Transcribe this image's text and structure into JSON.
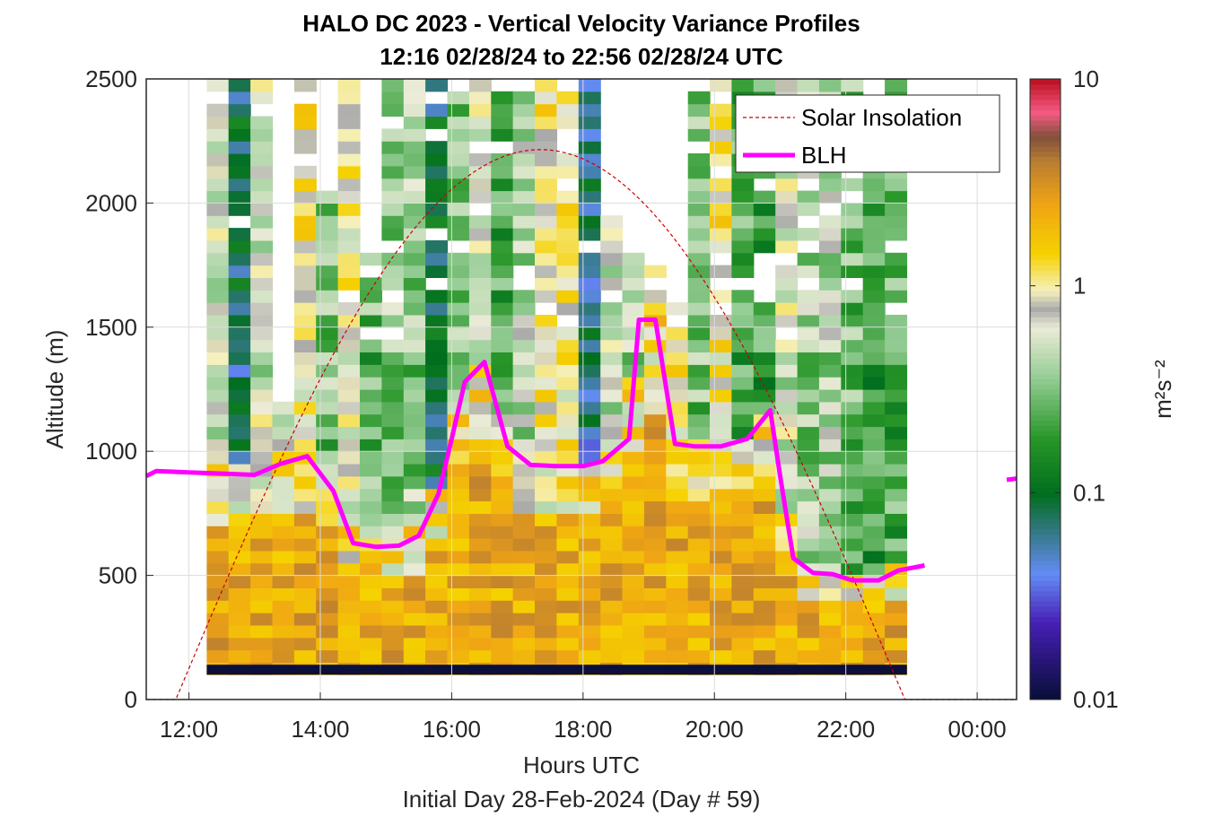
{
  "chart_data": {
    "type": "heatmap",
    "title": "HALO DC 2023 - Vertical Velocity Variance Profiles",
    "subtitle": "12:16 02/28/24 to 22:56 02/28/24  UTC",
    "xlabel": "Hours UTC",
    "xlabel2": "Initial Day 28-Feb-2024 (Day # 59)",
    "ylabel": "Altitude (m)",
    "colorbar_label": "m²s⁻²",
    "xlim": [
      11.35,
      24.6
    ],
    "ylim": [
      0,
      2500
    ],
    "x_tick_labels": [
      "12:00",
      "14:00",
      "16:00",
      "18:00",
      "20:00",
      "22:00",
      "00:00"
    ],
    "y_tick_labels": [
      "0",
      "500",
      "1000",
      "1500",
      "2000",
      "2500"
    ],
    "colorbar_tick_labels": [
      "0.01",
      "0.1",
      "1",
      "10"
    ],
    "colorbar_scale": "log",
    "colorbar_range": [
      0.01,
      10
    ],
    "grid": true,
    "legend_position": "top-right",
    "legend": [
      {
        "name": "Solar Insolation",
        "color": "#cc0000",
        "style": "dashed"
      },
      {
        "name": "BLH",
        "color": "#ff00ff",
        "style": "solid"
      }
    ],
    "data_start_hour": 12.27,
    "data_end_hour": 22.93,
    "column_step_hours": 0.333,
    "row_step_m": 50,
    "bottom_data_alt_m": 100,
    "solar_insolation": {
      "sunrise_hour": 11.8,
      "sunset_hour": 22.9,
      "peak_alt_m": 2215
    },
    "blh_series": {
      "x": [
        11.35,
        11.5,
        12.0,
        12.5,
        13.0,
        13.4,
        13.8,
        14.2,
        14.5,
        14.85,
        15.2,
        15.5,
        15.8,
        16.0,
        16.2,
        16.5,
        16.85,
        17.2,
        17.6,
        18.0,
        18.3,
        18.7,
        18.85,
        19.1,
        19.4,
        19.7,
        20.1,
        20.5,
        20.85,
        21.0,
        21.2,
        21.5,
        21.8,
        22.1,
        22.5,
        22.8,
        23.2
      ],
      "y": [
        900,
        920,
        915,
        910,
        905,
        950,
        980,
        840,
        630,
        615,
        620,
        660,
        830,
        1050,
        1280,
        1360,
        1020,
        945,
        940,
        940,
        960,
        1050,
        1530,
        1530,
        1030,
        1020,
        1020,
        1050,
        1165,
        900,
        570,
        510,
        505,
        480,
        480,
        520,
        540
      ]
    },
    "blh_series_late": {
      "x": [
        24.45,
        24.6
      ],
      "y": [
        885,
        890
      ]
    }
  }
}
